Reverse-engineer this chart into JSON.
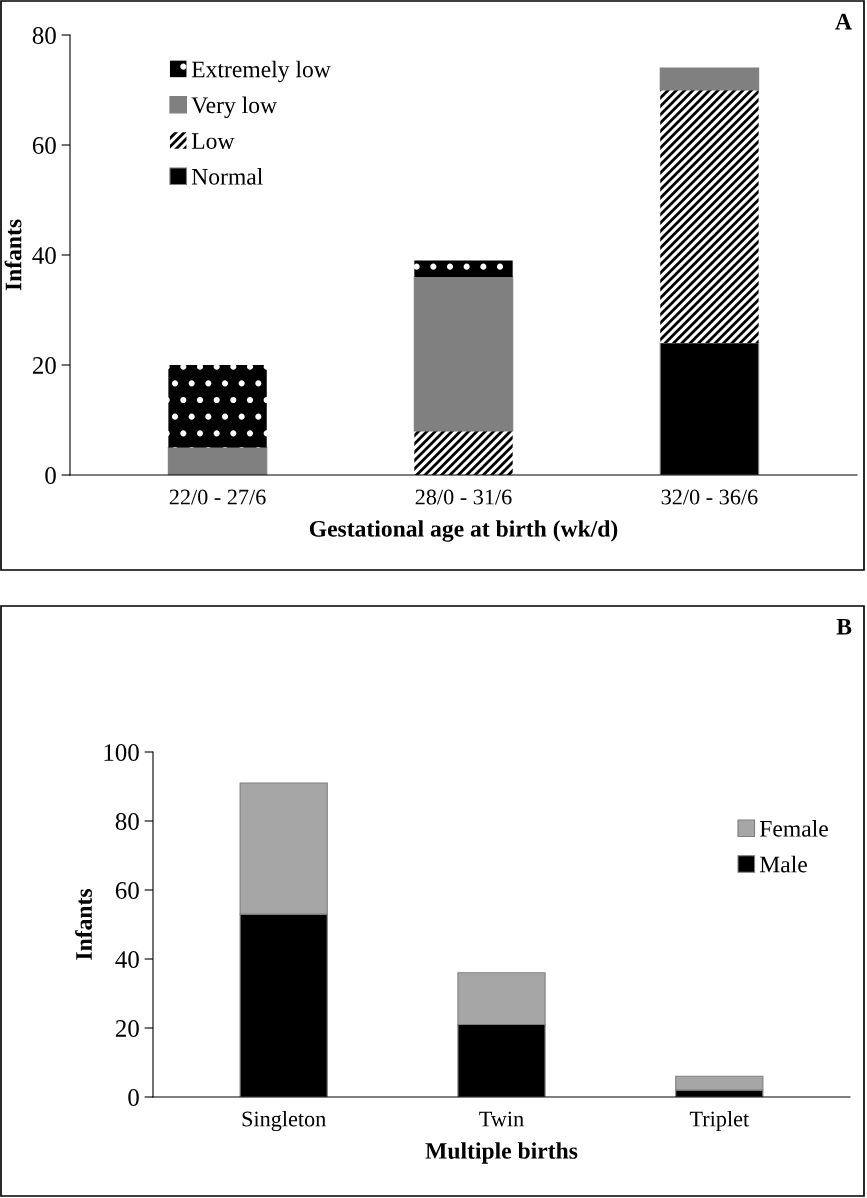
{
  "chart_data": [
    {
      "type": "bar",
      "title": "A",
      "stacked": true,
      "xlabel": "Gestational age at birth (wk/d)",
      "ylabel": "Infants",
      "categories": [
        "22/0 - 27/6",
        "28/0 - 31/6",
        "32/0 - 36/6"
      ],
      "ylim": [
        0,
        80
      ],
      "yticks": [
        0,
        20,
        40,
        60,
        80
      ],
      "grid": false,
      "legend": "top left",
      "series": [
        {
          "name": "Normal",
          "color": "#000000",
          "values": [
            0,
            0,
            24
          ]
        },
        {
          "name": "Low",
          "color": "#ffffff",
          "values": [
            0,
            8,
            46
          ]
        },
        {
          "name": "Very low",
          "color": "#808080",
          "values": [
            5,
            28,
            4
          ]
        },
        {
          "name": "Extremely low",
          "color": "#000000",
          "values": [
            15,
            3,
            0
          ]
        }
      ]
    },
    {
      "type": "bar",
      "title": "B",
      "stacked": true,
      "xlabel": "Multiple births",
      "ylabel": "Infants",
      "categories": [
        "Singleton",
        "Twin",
        "Triplet"
      ],
      "ylim": [
        0,
        100
      ],
      "yticks": [
        0,
        20,
        40,
        60,
        80,
        100
      ],
      "grid": false,
      "legend": "right",
      "series": [
        {
          "name": "Male",
          "color": "#000000",
          "values": [
            53,
            21,
            2
          ]
        },
        {
          "name": "Female",
          "color": "#a6a6a6",
          "values": [
            38,
            15,
            4
          ]
        }
      ]
    }
  ]
}
